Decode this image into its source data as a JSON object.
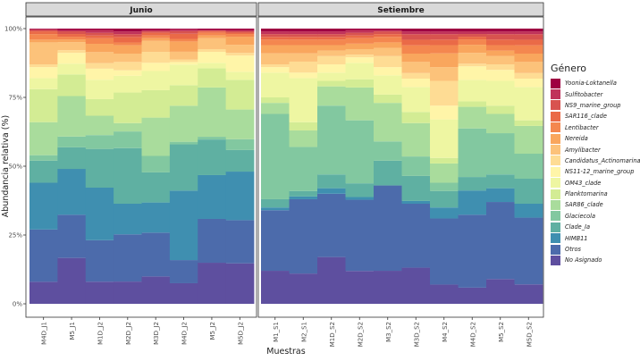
{
  "chart_data": {
    "type": "bar",
    "stacked": true,
    "title": "",
    "xlabel": "Muestras",
    "ylabel": "Abundancia relativa (%)",
    "ylim": [
      0,
      100
    ],
    "yticks": [
      "0%",
      "25%",
      "50%",
      "75%",
      "100%"
    ],
    "grid": false,
    "legend_title": "Género",
    "legend_position": "right",
    "legend_order": [
      "Yoonia-Loktanella",
      "Sulfitobacter",
      "NS9_marine_group",
      "SAR116_clade",
      "Lentibacter",
      "Nereida",
      "Amylibacter",
      "Candidatus_Actinomarina",
      "NS11-12_marine_group",
      "OM43_clade",
      "Planktomarina",
      "SAR86_clade",
      "Glaciecola",
      "Clade_Ia",
      "HIMB11",
      "Otros",
      "No Asignado"
    ],
    "colors": {
      "Yoonia-Loktanella": "#9e0142",
      "Sulfitobacter": "#c0325a",
      "NS9_marine_group": "#d8534f",
      "SAR116_clade": "#ea6a47",
      "Lentibacter": "#f4874f",
      "Nereida": "#f9a65d",
      "Amylibacter": "#fcc27a",
      "Candidatus_Actinomarina": "#fedc94",
      "NS11-12_marine_group": "#fff5a8",
      "OM43_clade": "#eef6a2",
      "Planktomarina": "#d3ec94",
      "SAR86_clade": "#a9dc9c",
      "Glaciecola": "#82c8a0",
      "Clade_Ia": "#5fb0a2",
      "HIMB11": "#3f8fb0",
      "Otros": "#4c6bab",
      "No Asignado": "#5e4f9f"
    },
    "stack_order_bottom_up": [
      "No Asignado",
      "Otros",
      "HIMB11",
      "Clade_Ia",
      "Glaciecola",
      "SAR86_clade",
      "Planktomarina",
      "OM43_clade",
      "NS11-12_marine_group",
      "Candidatus_Actinomarina",
      "Amylibacter",
      "Nereida",
      "Lentibacter",
      "SAR116_clade",
      "NS9_marine_group",
      "Sulfitobacter",
      "Yoonia-Loktanella"
    ],
    "panels": [
      {
        "name": "Junio",
        "categories": [
          "M4D_J1",
          "M5_J1",
          "M1D_J2",
          "M2D_J2",
          "M3D_J2",
          "M4D_J2",
          "M5_J2",
          "M5D_J2"
        ],
        "series": [
          {
            "name": "No Asignado",
            "values": [
              8,
              17,
              8,
              8,
              10,
              8,
              15,
              15
            ]
          },
          {
            "name": "Otros",
            "values": [
              19,
              16,
              15,
              17,
              16,
              9,
              16,
              16
            ]
          },
          {
            "name": "HIMB11",
            "values": [
              17,
              17,
              19,
              11,
              11,
              27,
              16,
              18
            ]
          },
          {
            "name": "Clade_Ia",
            "values": [
              8,
              8,
              14,
              20,
              11,
              18,
              13,
              8
            ]
          },
          {
            "name": "Glaciecola",
            "values": [
              2,
              4,
              5,
              6,
              6,
              1,
              1,
              4
            ]
          },
          {
            "name": "SAR86_clade",
            "values": [
              12,
              15,
              7,
              3,
              14,
              14,
              18,
              11
            ]
          },
          {
            "name": "Planktomarina",
            "values": [
              12,
              8,
              6,
              11,
              10,
              8,
              7,
              11
            ]
          },
          {
            "name": "OM43_clade",
            "values": [
              4,
              4,
              7,
              6,
              7,
              8,
              2,
              3
            ]
          },
          {
            "name": "NS11-12_marine_group",
            "values": [
              4,
              4,
              4,
              2,
              3,
              1,
              4,
              6
            ]
          },
          {
            "name": "Candidatus_Actinomarina",
            "values": [
              1,
              1,
              2,
              3,
              4,
              1,
              1,
              1
            ]
          },
          {
            "name": "Amylibacter",
            "values": [
              8,
              3,
              4,
              3,
              4,
              3,
              4,
              3
            ]
          },
          {
            "name": "Nereida",
            "values": [
              1,
              1,
              3,
              3,
              1,
              4,
              1,
              3
            ]
          },
          {
            "name": "Lentibacter",
            "values": [
              2,
              1,
              2,
              1,
              1,
              1,
              1,
              1
            ]
          },
          {
            "name": "SAR116_clade",
            "values": [
              1,
              1,
              1,
              2,
              1,
              2,
              0.5,
              0.5
            ]
          },
          {
            "name": "NS9_marine_group",
            "values": [
              0.5,
              1,
              1,
              1,
              0.5,
              1,
              0.3,
              0.5
            ]
          },
          {
            "name": "Sulfitobacter",
            "values": [
              0.3,
              0.5,
              1,
              1,
              0.5,
              0.7,
              0.2,
              0.5
            ]
          },
          {
            "name": "Yoonia-Loktanella",
            "values": [
              0.2,
              0.5,
              0.5,
              1,
              0.5,
              0.3,
              0.5,
              0.5
            ]
          }
        ]
      },
      {
        "name": "Setiembre",
        "categories": [
          "M1_S1",
          "M2_S1",
          "M1D_S2",
          "M2D_S2",
          "M3_S2",
          "M3D_S2",
          "M4_S2",
          "M4D_S2",
          "M5_S2",
          "M5D_S2"
        ],
        "series": [
          {
            "name": "No Asignado",
            "values": [
              12,
              11,
              17,
              12,
              12,
              13,
              7,
              6,
              9,
              7
            ]
          },
          {
            "name": "Otros",
            "values": [
              22,
              27,
              23,
              26,
              31,
              23,
              24,
              27,
              28,
              24
            ]
          },
          {
            "name": "HIMB11",
            "values": [
              1,
              1,
              2,
              1,
              0,
              1,
              4,
              9,
              5,
              5
            ]
          },
          {
            "name": "Clade_Ia",
            "values": [
              3,
              2,
              5,
              5,
              9,
              9,
              6,
              5,
              5,
              9
            ]
          },
          {
            "name": "Glaciecola",
            "values": [
              31,
              16,
              25,
              23,
              7,
              7,
              3,
              18,
              15,
              9
            ]
          },
          {
            "name": "SAR86_clade",
            "values": [
              4,
              6,
              7,
              12,
              14,
              12,
              7,
              8,
              7,
              10
            ]
          },
          {
            "name": "Planktomarina",
            "values": [
              2,
              3,
              2,
              3,
              3,
              4,
              2,
              2,
              3,
              2
            ]
          },
          {
            "name": "OM43_clade",
            "values": [
              9,
              16,
              3,
              6,
              7,
              9,
              14,
              8,
              9,
              12
            ]
          },
          {
            "name": "NS11-12_marine_group",
            "values": [
              2,
              2,
              3,
              2,
              3,
              3,
              5,
              5,
              4,
              3
            ]
          },
          {
            "name": "Candidatus_Actinomarina",
            "values": [
              1,
              4,
              3,
              1,
              4,
              2,
              9,
              1,
              2,
              2
            ]
          },
          {
            "name": "Amylibacter",
            "values": [
              4,
              3,
              2,
              2,
              3,
              4,
              5,
              4,
              3,
              4
            ]
          },
          {
            "name": "Nereida",
            "values": [
              3,
              3,
              2,
              2,
              2,
              3,
              5,
              3,
              2,
              3
            ]
          },
          {
            "name": "Lentibacter",
            "values": [
              2,
              2,
              2,
              2,
              2,
              3,
              3,
              2,
              2,
              3
            ]
          },
          {
            "name": "SAR116_clade",
            "values": [
              1,
              1,
              1,
              1,
              1,
              2,
              2,
              1,
              2,
              2
            ]
          },
          {
            "name": "NS9_marine_group",
            "values": [
              1,
              1,
              1,
              1,
              1,
              2,
              2,
              1,
              2,
              2
            ]
          },
          {
            "name": "Sulfitobacter",
            "values": [
              1,
              1,
              1,
              1,
              0.5,
              1,
              1,
              1,
              1,
              1
            ]
          },
          {
            "name": "Yoonia-Loktanella",
            "values": [
              1,
              1,
              1,
              0.5,
              0.5,
              1,
              1,
              1,
              1,
              1
            ]
          }
        ]
      }
    ]
  }
}
